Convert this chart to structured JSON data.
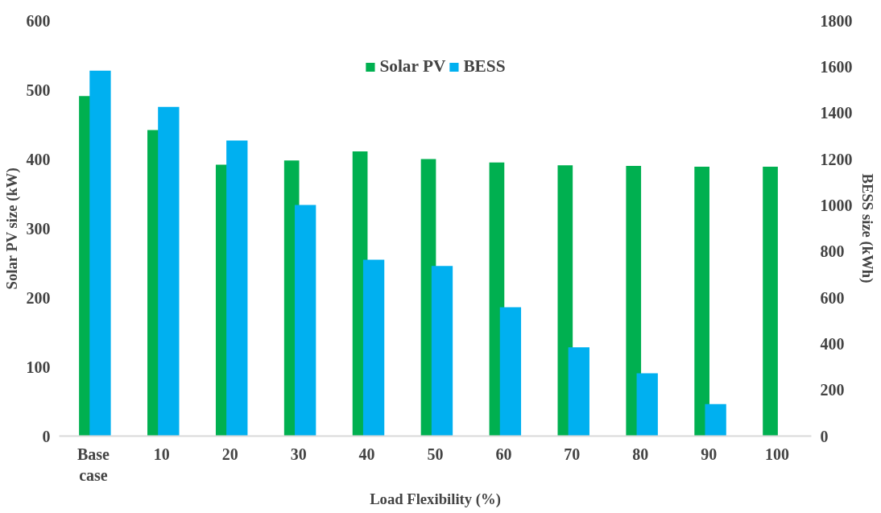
{
  "chart_data": {
    "type": "bar",
    "xlabel": "Load Flexibility (%)",
    "ylabel": "Solar PV size (kW)",
    "y2label": "BESS size (kWh)",
    "categories": [
      "Base case",
      "10",
      "20",
      "30",
      "40",
      "50",
      "60",
      "70",
      "80",
      "90",
      "100"
    ],
    "series": [
      {
        "name": "Solar PV",
        "color": "#00b050",
        "values": [
          491,
          442,
          392,
          398,
          411,
          400,
          395,
          391,
          390,
          389,
          389
        ]
      },
      {
        "name": "BESS",
        "color": "#00b0f0",
        "axis": "y2",
        "values": [
          1583,
          1426,
          1280,
          1001,
          764,
          737,
          558,
          385,
          272,
          139,
          null
        ]
      }
    ],
    "ylim": [
      0,
      600
    ],
    "yticks": [
      0,
      100,
      200,
      300,
      400,
      500,
      600
    ],
    "y2lim": [
      0,
      1800
    ],
    "y2ticks": [
      0,
      200,
      400,
      600,
      800,
      1000,
      1200,
      1400,
      1600,
      1800
    ],
    "grid": false,
    "legend": "top"
  }
}
